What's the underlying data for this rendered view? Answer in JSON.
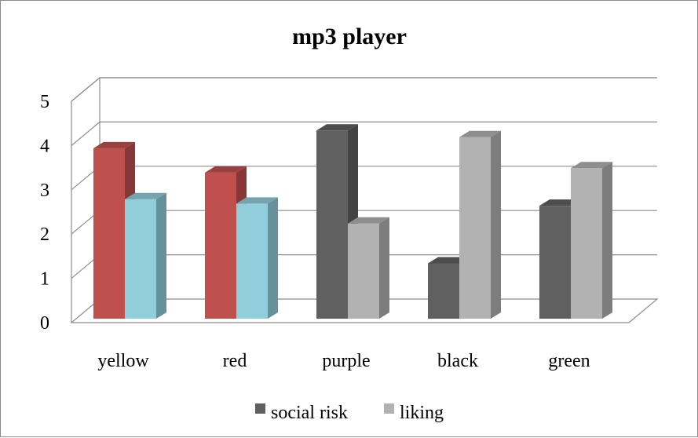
{
  "chart_data": {
    "type": "bar",
    "title": "mp3 player",
    "xlabel": "",
    "ylabel": "",
    "ylim": [
      0,
      5
    ],
    "yticks": [
      "0",
      "1",
      "2",
      "3",
      "4",
      "5"
    ],
    "grid": true,
    "legend_position": "bottom",
    "categories": [
      "yellow",
      "red",
      "purple",
      "black",
      "green"
    ],
    "series": [
      {
        "name": "social risk",
        "values": [
          3.85,
          3.3,
          4.25,
          1.25,
          2.55
        ]
      },
      {
        "name": "liking",
        "values": [
          2.7,
          2.6,
          2.15,
          4.1,
          3.4
        ]
      }
    ],
    "bar_colors": {
      "social risk": [
        "#c0504d",
        "#c0504d",
        "#606060",
        "#606060",
        "#606060"
      ],
      "liking": [
        "#92cddc",
        "#92cddc",
        "#b2b2b2",
        "#b2b2b2",
        "#b2b2b2"
      ]
    },
    "legend_colors": {
      "social risk": "#606060",
      "liking": "#b2b2b2"
    }
  }
}
